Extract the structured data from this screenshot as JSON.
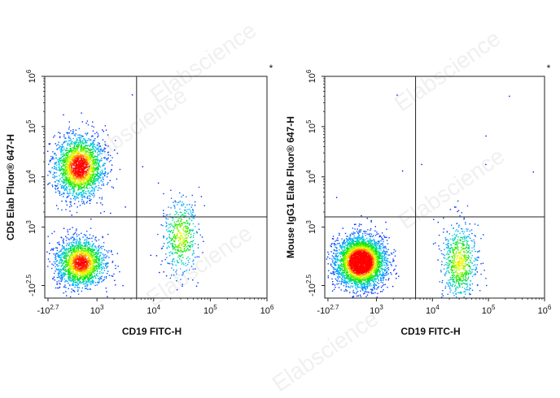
{
  "watermark": "Elabscience",
  "chart_data": [
    {
      "type": "scatter",
      "subtype": "flow-cytometry-density-dot-plot",
      "xlabel": "CD19 FITC-H",
      "ylabel": "CD5 Elab Fluor® 647-H",
      "corner_mark": "*",
      "x_ticks": [
        {
          "base": "-10",
          "exp": "2.7",
          "value": -501
        },
        {
          "base": "10",
          "exp": "3",
          "value": 1000
        },
        {
          "base": "10",
          "exp": "4",
          "value": 10000
        },
        {
          "base": "10",
          "exp": "5",
          "value": 100000
        },
        {
          "base": "10",
          "exp": "6",
          "value": 1000000
        }
      ],
      "y_ticks": [
        {
          "base": "-10",
          "exp": "2.5",
          "value": -316
        },
        {
          "base": "10",
          "exp": "3",
          "value": 1000
        },
        {
          "base": "10",
          "exp": "4",
          "value": 10000
        },
        {
          "base": "10",
          "exp": "5",
          "value": 100000
        },
        {
          "base": "10",
          "exp": "6",
          "value": 1000000
        }
      ],
      "xlim": [
        -501,
        1000000
      ],
      "ylim": [
        -316,
        1000000
      ],
      "scale": "biexponential",
      "quadrant_gate": {
        "x": 5000,
        "y": 1600
      },
      "color_scale": [
        "#0000ff",
        "#00ffff",
        "#00ff00",
        "#ffff00",
        "#ff0000"
      ],
      "populations": [
        {
          "center_x": 450,
          "center_y": 16000,
          "count": 2200
        },
        {
          "center_x": 500,
          "center_y": 200,
          "count": 1900
        },
        {
          "center_x": 30000,
          "center_y": 800,
          "count": 500
        }
      ]
    },
    {
      "type": "scatter",
      "subtype": "flow-cytometry-density-dot-plot",
      "xlabel": "CD19 FITC-H",
      "ylabel": "Mouse IgG1 Elab Fluor® 647-H",
      "corner_mark": "*",
      "x_ticks": [
        {
          "base": "-10",
          "exp": "2.7",
          "value": -501
        },
        {
          "base": "10",
          "exp": "3",
          "value": 1000
        },
        {
          "base": "10",
          "exp": "4",
          "value": 10000
        },
        {
          "base": "10",
          "exp": "5",
          "value": 100000
        },
        {
          "base": "10",
          "exp": "6",
          "value": 1000000
        }
      ],
      "y_ticks": [
        {
          "base": "-10",
          "exp": "2.5",
          "value": -316
        },
        {
          "base": "10",
          "exp": "3",
          "value": 1000
        },
        {
          "base": "10",
          "exp": "4",
          "value": 10000
        },
        {
          "base": "10",
          "exp": "5",
          "value": 100000
        },
        {
          "base": "10",
          "exp": "6",
          "value": 1000000
        }
      ],
      "xlim": [
        -501,
        1000000
      ],
      "ylim": [
        -316,
        1000000
      ],
      "scale": "biexponential",
      "quadrant_gate": {
        "x": 5000,
        "y": 1600
      },
      "color_scale": [
        "#0000ff",
        "#00ffff",
        "#00ff00",
        "#ffff00",
        "#ff0000"
      ],
      "populations": [
        {
          "center_x": 500,
          "center_y": 220,
          "count": 3600
        },
        {
          "center_x": 30000,
          "center_y": 220,
          "count": 700
        }
      ]
    }
  ]
}
